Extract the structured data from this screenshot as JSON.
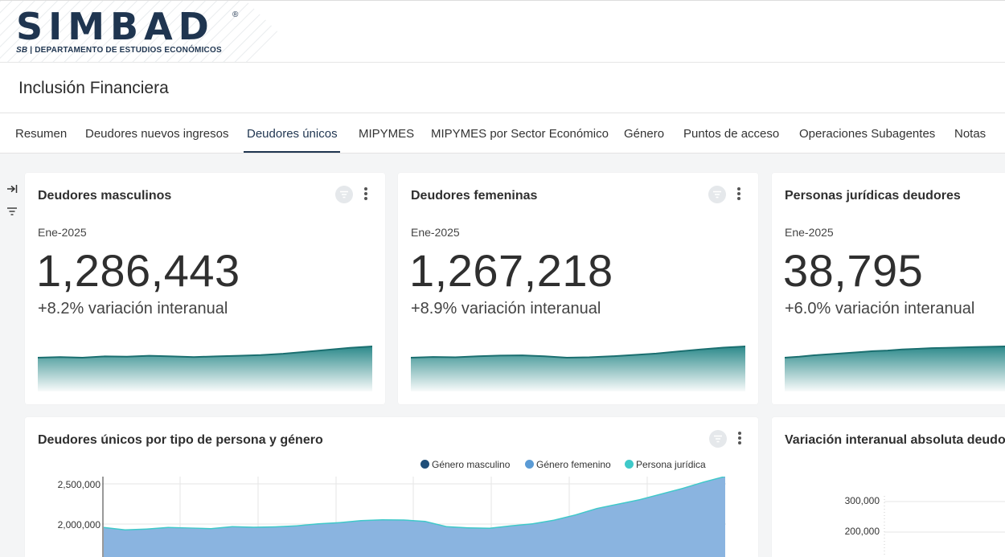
{
  "logo": {
    "wordmark": "SIMBAD",
    "registered": "®",
    "sub_brand": "SB",
    "sub_text": "| DEPARTAMENTO DE ESTUDIOS ECONÓMICOS"
  },
  "page": {
    "title": "Inclusión Financiera"
  },
  "tabs": [
    {
      "label": "Resumen"
    },
    {
      "label": "Deudores nuevos ingresos"
    },
    {
      "label": "Deudores únicos",
      "active": true
    },
    {
      "label": "MIPYMES"
    },
    {
      "label": "MIPYMES por Sector Económico"
    },
    {
      "label": "Género"
    },
    {
      "label": "Puntos de acceso"
    },
    {
      "label": "Operaciones Subagentes"
    },
    {
      "label": "Notas"
    }
  ],
  "sidebar": {
    "icons": [
      "expand-panel-icon",
      "filter-icon"
    ]
  },
  "kpis": [
    {
      "title": "Deudores masculinos",
      "period": "Ene-2025",
      "value": "1,286,443",
      "variation": "+8.2% variación interanual"
    },
    {
      "title": "Deudores femeninas",
      "period": "Ene-2025",
      "value": "1,267,218",
      "variation": "+8.9% variación interanual"
    },
    {
      "title": "Personas jurídicas deudores",
      "period": "Ene-2025",
      "value": "38,795",
      "variation": "+6.0% variación interanual"
    }
  ],
  "colors": {
    "accent": "#1f3550",
    "spark_line": "#1b6f70",
    "spark_fill": "#2d8a8b",
    "masculino": "#1f4e79",
    "femenino": "#5b9bd5",
    "juridica": "#3fc9c9",
    "area_fill": "#8ab4e0"
  },
  "main_chart": {
    "title": "Deudores únicos por tipo de persona y género",
    "legend": [
      "Género masculino",
      "Género femenino",
      "Persona jurídica"
    ],
    "y_ticks": [
      "2,500,000",
      "2,000,000"
    ]
  },
  "side_chart": {
    "title": "Variación interanual absoluta deudores",
    "y_ticks": [
      "300,000",
      "200,000"
    ]
  },
  "chart_data": {
    "type": "area",
    "title": "Deudores únicos por tipo de persona y género",
    "ylim": [
      1500000,
      2600000
    ],
    "series": [
      {
        "name": "Persona jurídica",
        "values": [
          1965000,
          1935000,
          1945000,
          1965000,
          1958000,
          1950000,
          1975000,
          1968000,
          1972000,
          1985000,
          2010000,
          2025000,
          2050000,
          2060000,
          2058000,
          2040000,
          1975000,
          1960000,
          1955000,
          1985000,
          2010000,
          2055000,
          2120000,
          2200000,
          2255000,
          2310000,
          2380000,
          2450000,
          2530000,
          2600000
        ]
      },
      {
        "name": "Género femenino",
        "values": [
          1950000,
          1920000,
          1930000,
          1950000,
          1945000,
          1935000,
          1960000,
          1953000,
          1957000,
          1970000,
          1995000,
          2010000,
          2035000,
          2045000,
          2043000,
          2025000,
          1960000,
          1945000,
          1940000,
          1970000,
          1995000,
          2040000,
          2105000,
          2185000,
          2240000,
          2295000,
          2365000,
          2435000,
          2515000,
          2585000
        ]
      }
    ],
    "sparklines": [
      {
        "values": [
          1200,
          1205,
          1200,
          1210,
          1208,
          1215,
          1210,
          1205,
          1210,
          1215,
          1220,
          1230,
          1245,
          1260,
          1275,
          1286
        ]
      },
      {
        "values": [
          1185,
          1190,
          1188,
          1195,
          1200,
          1202,
          1195,
          1185,
          1188,
          1195,
          1205,
          1215,
          1230,
          1245,
          1258,
          1267
        ]
      },
      {
        "values": [
          35.5,
          35.8,
          36.2,
          36.5,
          36.8,
          37.1,
          37.4,
          37.6,
          37.9,
          38.1,
          38.3,
          38.4,
          38.5,
          38.6,
          38.7,
          38.8
        ]
      }
    ]
  }
}
